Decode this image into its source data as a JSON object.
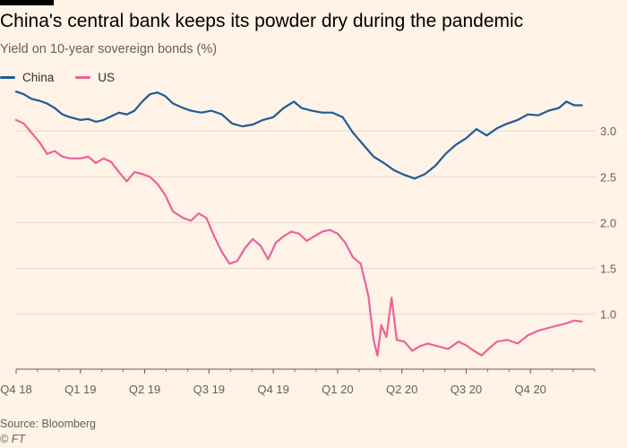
{
  "title": "China's central bank keeps its powder dry during the pandemic",
  "subtitle": "Yield on 10-year sovereign bonds (%)",
  "source": "Source: Bloomberg",
  "credit": "© FT",
  "colors": {
    "china": "#1f5b96",
    "us": "#e8649a",
    "grid": "#e4d8cd",
    "axis": "#66605c"
  },
  "chart_data": {
    "type": "line",
    "title": "China's central bank keeps its powder dry during the pandemic",
    "ylabel": "Yield on 10-year sovereign bonds (%)",
    "xlabel": "",
    "x_range": [
      2018.75,
      2021.0
    ],
    "ylim": [
      0.4,
      3.5
    ],
    "yticks": [
      1.0,
      1.5,
      2.0,
      2.5,
      3.0
    ],
    "xticks": [
      {
        "label": "Q4 18",
        "x": 2018.75
      },
      {
        "label": "Q1 19",
        "x": 2019.0
      },
      {
        "label": "Q2 19",
        "x": 2019.25
      },
      {
        "label": "Q3 19",
        "x": 2019.5
      },
      {
        "label": "Q4 19",
        "x": 2019.75
      },
      {
        "label": "Q1 20",
        "x": 2020.0
      },
      {
        "label": "Q2 20",
        "x": 2020.25
      },
      {
        "label": "Q3 20",
        "x": 2020.5
      },
      {
        "label": "Q4 20",
        "x": 2020.75
      }
    ],
    "series": [
      {
        "name": "China",
        "color": "#1f5b96",
        "points": [
          [
            2018.75,
            3.43
          ],
          [
            2018.78,
            3.4
          ],
          [
            2018.81,
            3.35
          ],
          [
            2018.84,
            3.33
          ],
          [
            2018.87,
            3.3
          ],
          [
            2018.9,
            3.25
          ],
          [
            2018.93,
            3.18
          ],
          [
            2018.96,
            3.15
          ],
          [
            2019.0,
            3.12
          ],
          [
            2019.03,
            3.13
          ],
          [
            2019.06,
            3.1
          ],
          [
            2019.09,
            3.12
          ],
          [
            2019.12,
            3.16
          ],
          [
            2019.15,
            3.2
          ],
          [
            2019.18,
            3.18
          ],
          [
            2019.21,
            3.22
          ],
          [
            2019.24,
            3.32
          ],
          [
            2019.27,
            3.4
          ],
          [
            2019.3,
            3.42
          ],
          [
            2019.33,
            3.38
          ],
          [
            2019.36,
            3.3
          ],
          [
            2019.4,
            3.25
          ],
          [
            2019.43,
            3.22
          ],
          [
            2019.47,
            3.2
          ],
          [
            2019.51,
            3.22
          ],
          [
            2019.55,
            3.18
          ],
          [
            2019.59,
            3.08
          ],
          [
            2019.63,
            3.05
          ],
          [
            2019.67,
            3.07
          ],
          [
            2019.71,
            3.12
          ],
          [
            2019.75,
            3.15
          ],
          [
            2019.79,
            3.25
          ],
          [
            2019.83,
            3.32
          ],
          [
            2019.86,
            3.25
          ],
          [
            2019.9,
            3.22
          ],
          [
            2019.94,
            3.2
          ],
          [
            2019.98,
            3.2
          ],
          [
            2020.02,
            3.15
          ],
          [
            2020.06,
            2.98
          ],
          [
            2020.1,
            2.85
          ],
          [
            2020.14,
            2.72
          ],
          [
            2020.18,
            2.65
          ],
          [
            2020.22,
            2.57
          ],
          [
            2020.26,
            2.52
          ],
          [
            2020.3,
            2.48
          ],
          [
            2020.34,
            2.53
          ],
          [
            2020.38,
            2.62
          ],
          [
            2020.42,
            2.75
          ],
          [
            2020.46,
            2.85
          ],
          [
            2020.5,
            2.92
          ],
          [
            2020.54,
            3.02
          ],
          [
            2020.58,
            2.95
          ],
          [
            2020.62,
            3.03
          ],
          [
            2020.66,
            3.08
          ],
          [
            2020.7,
            3.12
          ],
          [
            2020.74,
            3.18
          ],
          [
            2020.78,
            3.17
          ],
          [
            2020.82,
            3.22
          ],
          [
            2020.86,
            3.25
          ],
          [
            2020.89,
            3.32
          ],
          [
            2020.92,
            3.28
          ],
          [
            2020.95,
            3.28
          ]
        ]
      },
      {
        "name": "US",
        "color": "#e8649a",
        "points": [
          [
            2018.75,
            3.12
          ],
          [
            2018.78,
            3.08
          ],
          [
            2018.81,
            2.98
          ],
          [
            2018.84,
            2.88
          ],
          [
            2018.87,
            2.75
          ],
          [
            2018.9,
            2.78
          ],
          [
            2018.93,
            2.72
          ],
          [
            2018.96,
            2.7
          ],
          [
            2019.0,
            2.7
          ],
          [
            2019.03,
            2.72
          ],
          [
            2019.06,
            2.65
          ],
          [
            2019.09,
            2.7
          ],
          [
            2019.12,
            2.66
          ],
          [
            2019.15,
            2.55
          ],
          [
            2019.18,
            2.45
          ],
          [
            2019.21,
            2.55
          ],
          [
            2019.24,
            2.53
          ],
          [
            2019.27,
            2.5
          ],
          [
            2019.3,
            2.42
          ],
          [
            2019.33,
            2.3
          ],
          [
            2019.36,
            2.12
          ],
          [
            2019.4,
            2.05
          ],
          [
            2019.43,
            2.02
          ],
          [
            2019.46,
            2.1
          ],
          [
            2019.49,
            2.05
          ],
          [
            2019.52,
            1.85
          ],
          [
            2019.55,
            1.68
          ],
          [
            2019.58,
            1.55
          ],
          [
            2019.61,
            1.58
          ],
          [
            2019.64,
            1.72
          ],
          [
            2019.67,
            1.82
          ],
          [
            2019.7,
            1.75
          ],
          [
            2019.73,
            1.6
          ],
          [
            2019.76,
            1.78
          ],
          [
            2019.79,
            1.85
          ],
          [
            2019.82,
            1.9
          ],
          [
            2019.85,
            1.88
          ],
          [
            2019.88,
            1.8
          ],
          [
            2019.91,
            1.85
          ],
          [
            2019.94,
            1.9
          ],
          [
            2019.97,
            1.92
          ],
          [
            2020.0,
            1.88
          ],
          [
            2020.03,
            1.78
          ],
          [
            2020.06,
            1.62
          ],
          [
            2020.09,
            1.55
          ],
          [
            2020.12,
            1.2
          ],
          [
            2020.14,
            0.72
          ],
          [
            2020.155,
            0.55
          ],
          [
            2020.17,
            0.88
          ],
          [
            2020.19,
            0.75
          ],
          [
            2020.21,
            1.18
          ],
          [
            2020.23,
            0.72
          ],
          [
            2020.26,
            0.7
          ],
          [
            2020.29,
            0.6
          ],
          [
            2020.32,
            0.65
          ],
          [
            2020.35,
            0.68
          ],
          [
            2020.39,
            0.65
          ],
          [
            2020.43,
            0.62
          ],
          [
            2020.47,
            0.7
          ],
          [
            2020.5,
            0.66
          ],
          [
            2020.53,
            0.6
          ],
          [
            2020.56,
            0.55
          ],
          [
            2020.59,
            0.63
          ],
          [
            2020.62,
            0.7
          ],
          [
            2020.66,
            0.72
          ],
          [
            2020.7,
            0.68
          ],
          [
            2020.74,
            0.77
          ],
          [
            2020.78,
            0.82
          ],
          [
            2020.82,
            0.85
          ],
          [
            2020.86,
            0.88
          ],
          [
            2020.89,
            0.9
          ],
          [
            2020.92,
            0.93
          ],
          [
            2020.95,
            0.92
          ]
        ]
      }
    ]
  }
}
